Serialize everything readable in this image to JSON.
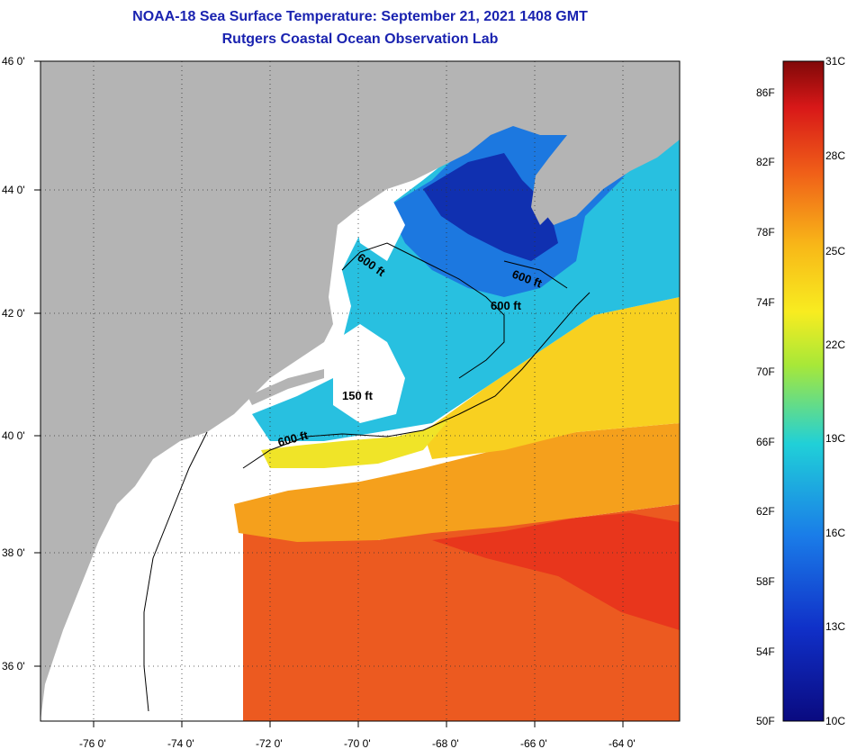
{
  "title": {
    "line1": "NOAA-18 Sea Surface Temperature:  September 21, 2021 1408 GMT",
    "line2": "Rutgers Coastal Ocean Observation Lab"
  },
  "map": {
    "lon_ticks": [
      "-76 0'",
      "-74 0'",
      "-72 0'",
      "-70 0'",
      "-68 0'",
      "-66 0'",
      "-64 0'"
    ],
    "lat_ticks": [
      "46 0'",
      "44 0'",
      "42 0'",
      "40 0'",
      "38 0'",
      "36 0'"
    ],
    "lon_range": [
      -77,
      -62.5
    ],
    "lat_range": [
      35,
      46
    ],
    "contour_labels": [
      "600 ft",
      "600 ft",
      "600 ft",
      "150 ft",
      "600 ft"
    ],
    "colors": {
      "land": "#b4b4b4",
      "cloud": "#ffffff",
      "cold": "#1450d8",
      "cool": "#21c3e8",
      "mild": "#f8e020",
      "warm": "#f49a1a",
      "hot": "#e8441c"
    }
  },
  "colorbar": {
    "celsius_labels": [
      "31C",
      "28C",
      "25C",
      "22C",
      "19C",
      "16C",
      "13C",
      "10C"
    ],
    "fahrenheit_labels": [
      "86F",
      "82F",
      "78F",
      "74F",
      "70F",
      "66F",
      "62F",
      "58F",
      "54F",
      "50F"
    ],
    "range_c": [
      10,
      31
    ],
    "range_f": [
      50,
      87.8
    ]
  }
}
